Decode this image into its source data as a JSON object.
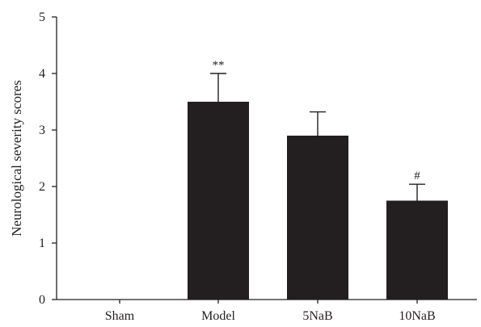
{
  "chart_data": {
    "type": "bar",
    "categories": [
      "Sham",
      "Model",
      "5NaB",
      "10NaB"
    ],
    "values": [
      0,
      3.5,
      2.9,
      1.75
    ],
    "errors": [
      0,
      0.5,
      0.42,
      0.29
    ],
    "annotations": [
      "",
      "**",
      "",
      "#"
    ],
    "ylabel": "Neurological severity scores",
    "xlabel": "",
    "ylim": [
      0,
      5
    ],
    "yticks": [
      0,
      1,
      2,
      3,
      4,
      5
    ],
    "bar_color": "#231f20",
    "grid": false
  }
}
